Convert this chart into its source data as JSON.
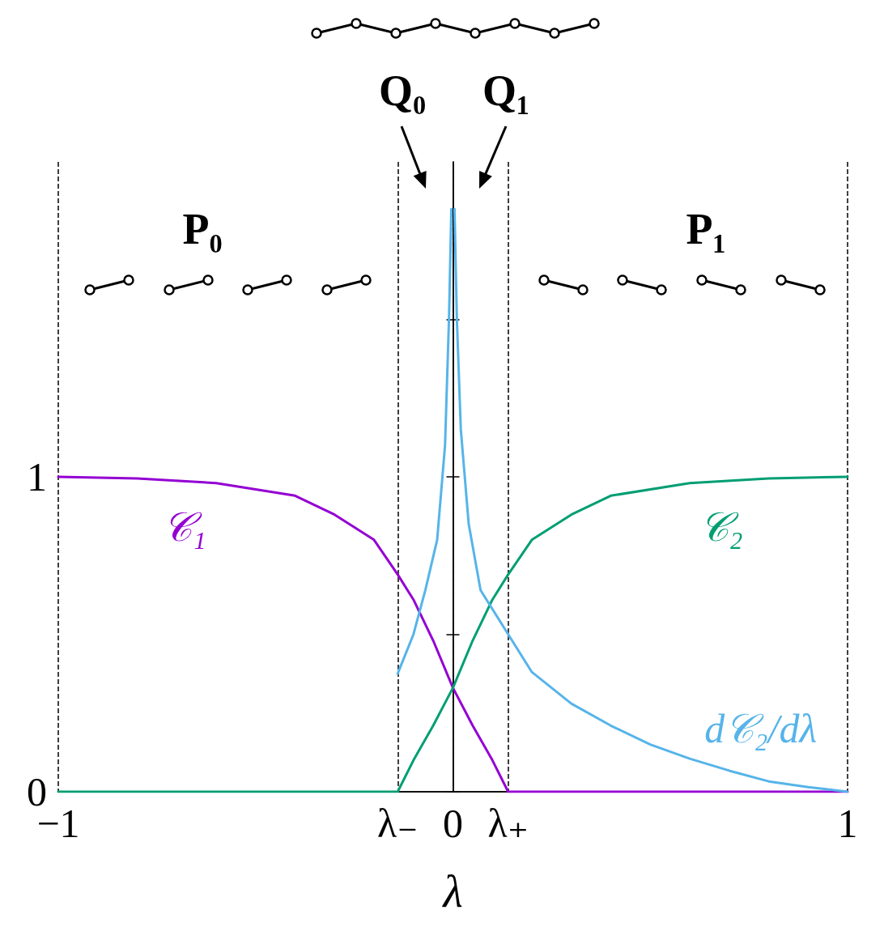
{
  "chart_data": {
    "type": "line",
    "xlabel": "λ",
    "xlim": [
      -1,
      1
    ],
    "xticks": [
      {
        "value": -1,
        "label": "−1"
      },
      {
        "value": -0.14,
        "label": "λ₋"
      },
      0,
      {
        "value": 0.14,
        "label": "λ₊"
      },
      1
    ],
    "ylim": [
      0,
      2
    ],
    "yticks": [
      0,
      {
        "value": 0.5,
        "label": null
      },
      1,
      {
        "value": 1.5,
        "label": null
      }
    ],
    "grid": "x",
    "legend": false,
    "marker": "none",
    "line_style": "solid",
    "series": [
      {
        "name": "𝒞₁",
        "color": "#9400d3",
        "x": [
          -1,
          -0.8,
          -0.6,
          -0.4,
          -0.3,
          -0.2,
          -0.14,
          -0.1,
          -0.05,
          0,
          0.05,
          0.1,
          0.14,
          0.4,
          0.7,
          1
        ],
        "values": [
          1,
          0.995,
          0.98,
          0.94,
          0.88,
          0.8,
          0.69,
          0.61,
          0.48,
          0.33,
          0.21,
          0.1,
          0,
          0,
          0,
          0
        ]
      },
      {
        "name": "𝒞₂",
        "color": "#009e73",
        "x": [
          -1,
          -0.7,
          -0.4,
          -0.14,
          -0.1,
          -0.05,
          0,
          0.05,
          0.1,
          0.14,
          0.2,
          0.3,
          0.4,
          0.6,
          0.8,
          1
        ],
        "values": [
          0,
          0,
          0,
          0,
          0.1,
          0.21,
          0.33,
          0.48,
          0.61,
          0.69,
          0.8,
          0.88,
          0.94,
          0.98,
          0.995,
          1
        ]
      },
      {
        "name": "d𝒞₂/dλ",
        "color": "#56b4e9",
        "x": [
          -0.14,
          -0.1,
          -0.07,
          -0.04,
          -0.02,
          -0.01,
          -0.004,
          0,
          0.004,
          0.01,
          0.02,
          0.04,
          0.07,
          0.14,
          0.2,
          0.3,
          0.4,
          0.5,
          0.6,
          0.7,
          0.8,
          0.9,
          1
        ],
        "values": [
          0.375,
          0.5,
          0.64,
          0.8,
          1.1,
          1.5,
          1.85,
          null,
          1.85,
          1.5,
          1.15,
          0.85,
          0.64,
          0.5,
          0.38,
          0.28,
          0.21,
          0.15,
          0.105,
          0.067,
          0.033,
          0.015,
          0
        ]
      }
    ],
    "annotations": [
      "P₀",
      "P₁",
      "Q₀",
      "Q₁"
    ]
  }
}
